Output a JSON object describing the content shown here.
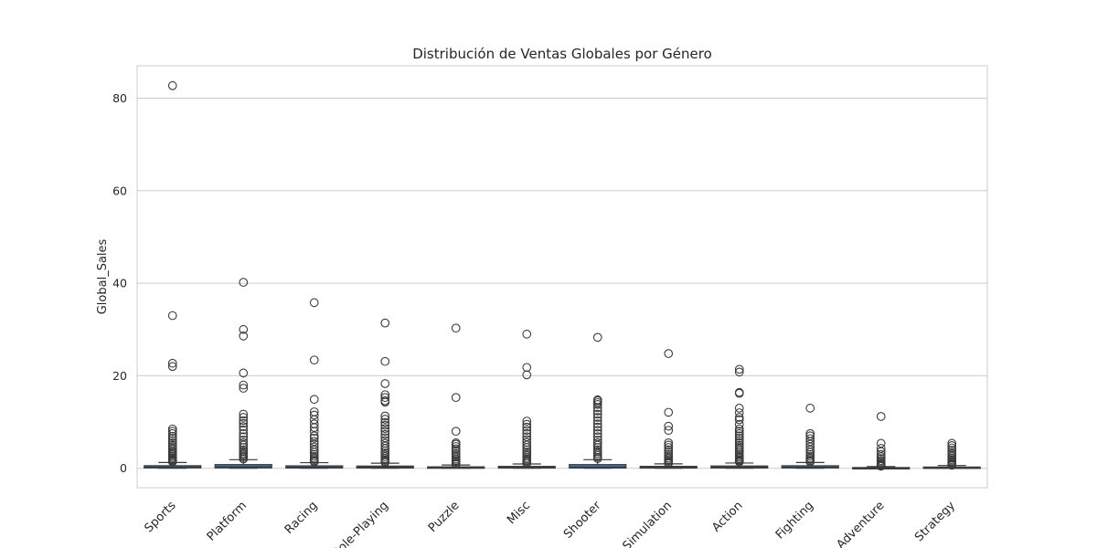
{
  "chart_data": {
    "type": "box",
    "title": "Distribución de Ventas Globales por Género",
    "xlabel": "",
    "ylabel": "Global_Sales",
    "ylim": [
      -4.2,
      87
    ],
    "yticks": [
      "0",
      "20",
      "40",
      "60",
      "80"
    ],
    "ytick_values": [
      0,
      20,
      40,
      60,
      80
    ],
    "grid": "horizontal",
    "box_color": "#3a75b0",
    "categories": [
      "Sports",
      "Platform",
      "Racing",
      "Role-Playing",
      "Puzzle",
      "Misc",
      "Shooter",
      "Simulation",
      "Action",
      "Fighting",
      "Adventure",
      "Strategy"
    ],
    "boxes": [
      {
        "category": "Sports",
        "min": 0.01,
        "q1": 0.09,
        "median": 0.22,
        "q3": 0.56,
        "max": 1.26,
        "outliers": [
          82.7,
          33.0,
          22.7,
          22.0,
          8.5,
          8.0,
          7.5,
          6.9,
          6.5,
          6.0,
          5.5,
          5.0,
          4.6,
          4.2,
          3.8,
          3.5,
          3.2,
          2.9,
          2.6,
          2.3,
          2.0,
          1.8,
          1.6,
          1.4
        ]
      },
      {
        "category": "Platform",
        "min": 0.01,
        "q1": 0.09,
        "median": 0.28,
        "q3": 0.8,
        "max": 1.86,
        "outliers": [
          40.2,
          30.0,
          28.6,
          20.6,
          18.0,
          17.3,
          11.7,
          11.0,
          10.3,
          9.7,
          9.0,
          8.3,
          7.5,
          6.8,
          6.1,
          5.5,
          5.0,
          4.5,
          4.0,
          3.6,
          3.2,
          2.9,
          2.6,
          2.3,
          2.0
        ]
      },
      {
        "category": "Racing",
        "min": 0.01,
        "q1": 0.07,
        "median": 0.19,
        "q3": 0.53,
        "max": 1.22,
        "outliers": [
          35.8,
          23.4,
          14.9,
          12.2,
          11.5,
          10.5,
          9.6,
          8.8,
          8.0,
          7.0,
          6.5,
          5.8,
          5.2,
          4.6,
          4.0,
          3.5,
          3.0,
          2.6,
          2.2,
          1.9,
          1.6,
          1.4
        ]
      },
      {
        "category": "Role-Playing",
        "min": 0.01,
        "q1": 0.07,
        "median": 0.19,
        "q3": 0.48,
        "max": 1.1,
        "outliers": [
          31.4,
          23.1,
          18.3,
          15.9,
          15.3,
          14.6,
          14.3,
          11.3,
          10.6,
          9.9,
          9.3,
          8.6,
          8.0,
          7.3,
          6.6,
          6.0,
          5.4,
          4.8,
          4.3,
          3.8,
          3.3,
          2.9,
          2.5,
          2.1,
          1.8,
          1.5,
          1.3
        ]
      },
      {
        "category": "Puzzle",
        "min": 0.01,
        "q1": 0.04,
        "median": 0.11,
        "q3": 0.31,
        "max": 0.71,
        "outliers": [
          30.3,
          15.3,
          8.0,
          5.5,
          5.2,
          4.7,
          4.2,
          3.7,
          3.2,
          2.8,
          2.4,
          2.0,
          1.7,
          1.4,
          1.1,
          0.9
        ]
      },
      {
        "category": "Misc",
        "min": 0.01,
        "q1": 0.06,
        "median": 0.16,
        "q3": 0.41,
        "max": 0.93,
        "outliers": [
          29.0,
          21.8,
          20.2,
          10.2,
          9.5,
          8.9,
          8.2,
          7.5,
          6.8,
          6.2,
          5.6,
          5.0,
          4.5,
          4.0,
          3.5,
          3.1,
          2.7,
          2.3,
          2.0,
          1.7,
          1.4,
          1.1
        ]
      },
      {
        "category": "Shooter",
        "min": 0.01,
        "q1": 0.07,
        "median": 0.23,
        "q3": 0.8,
        "max": 1.86,
        "outliers": [
          28.3,
          14.8,
          14.6,
          14.2,
          13.8,
          13.1,
          12.4,
          11.7,
          11.0,
          10.3,
          9.6,
          8.9,
          8.2,
          7.5,
          6.8,
          6.1,
          5.5,
          5.0,
          4.5,
          4.0,
          3.6,
          3.2,
          2.8,
          2.4,
          2.1
        ]
      },
      {
        "category": "Simulation",
        "min": 0.01,
        "q1": 0.05,
        "median": 0.16,
        "q3": 0.42,
        "max": 0.96,
        "outliers": [
          24.8,
          12.1,
          9.1,
          8.2,
          5.5,
          5.0,
          4.5,
          4.0,
          3.5,
          3.0,
          2.6,
          2.2,
          1.9,
          1.6,
          1.3,
          1.1
        ]
      },
      {
        "category": "Action",
        "min": 0.01,
        "q1": 0.07,
        "median": 0.19,
        "q3": 0.5,
        "max": 1.14,
        "outliers": [
          21.4,
          20.8,
          16.4,
          16.2,
          13.0,
          12.0,
          11.0,
          10.5,
          9.5,
          8.5,
          8.0,
          7.5,
          7.0,
          6.5,
          6.0,
          5.5,
          5.0,
          4.6,
          4.2,
          3.8,
          3.4,
          3.0,
          2.7,
          2.4,
          2.1,
          1.8,
          1.6,
          1.4
        ]
      },
      {
        "category": "Fighting",
        "min": 0.01,
        "q1": 0.08,
        "median": 0.21,
        "q3": 0.55,
        "max": 1.25,
        "outliers": [
          13.0,
          7.5,
          7.0,
          6.4,
          5.8,
          5.2,
          4.6,
          4.0,
          3.5,
          3.0,
          2.6,
          2.2,
          1.9,
          1.6,
          1.4
        ]
      },
      {
        "category": "Adventure",
        "min": 0.01,
        "q1": 0.02,
        "median": 0.06,
        "q3": 0.16,
        "max": 0.37,
        "outliers": [
          11.2,
          5.4,
          4.3,
          3.6,
          3.0,
          2.5,
          2.1,
          1.7,
          1.4,
          1.1,
          0.9,
          0.7,
          0.55,
          0.45
        ]
      },
      {
        "category": "Strategy",
        "min": 0.01,
        "q1": 0.04,
        "median": 0.09,
        "q3": 0.27,
        "max": 0.6,
        "outliers": [
          5.4,
          4.9,
          4.4,
          3.9,
          3.4,
          3.0,
          2.6,
          2.2,
          1.9,
          1.6,
          1.3,
          1.1,
          0.9,
          0.75,
          0.65
        ]
      }
    ]
  }
}
